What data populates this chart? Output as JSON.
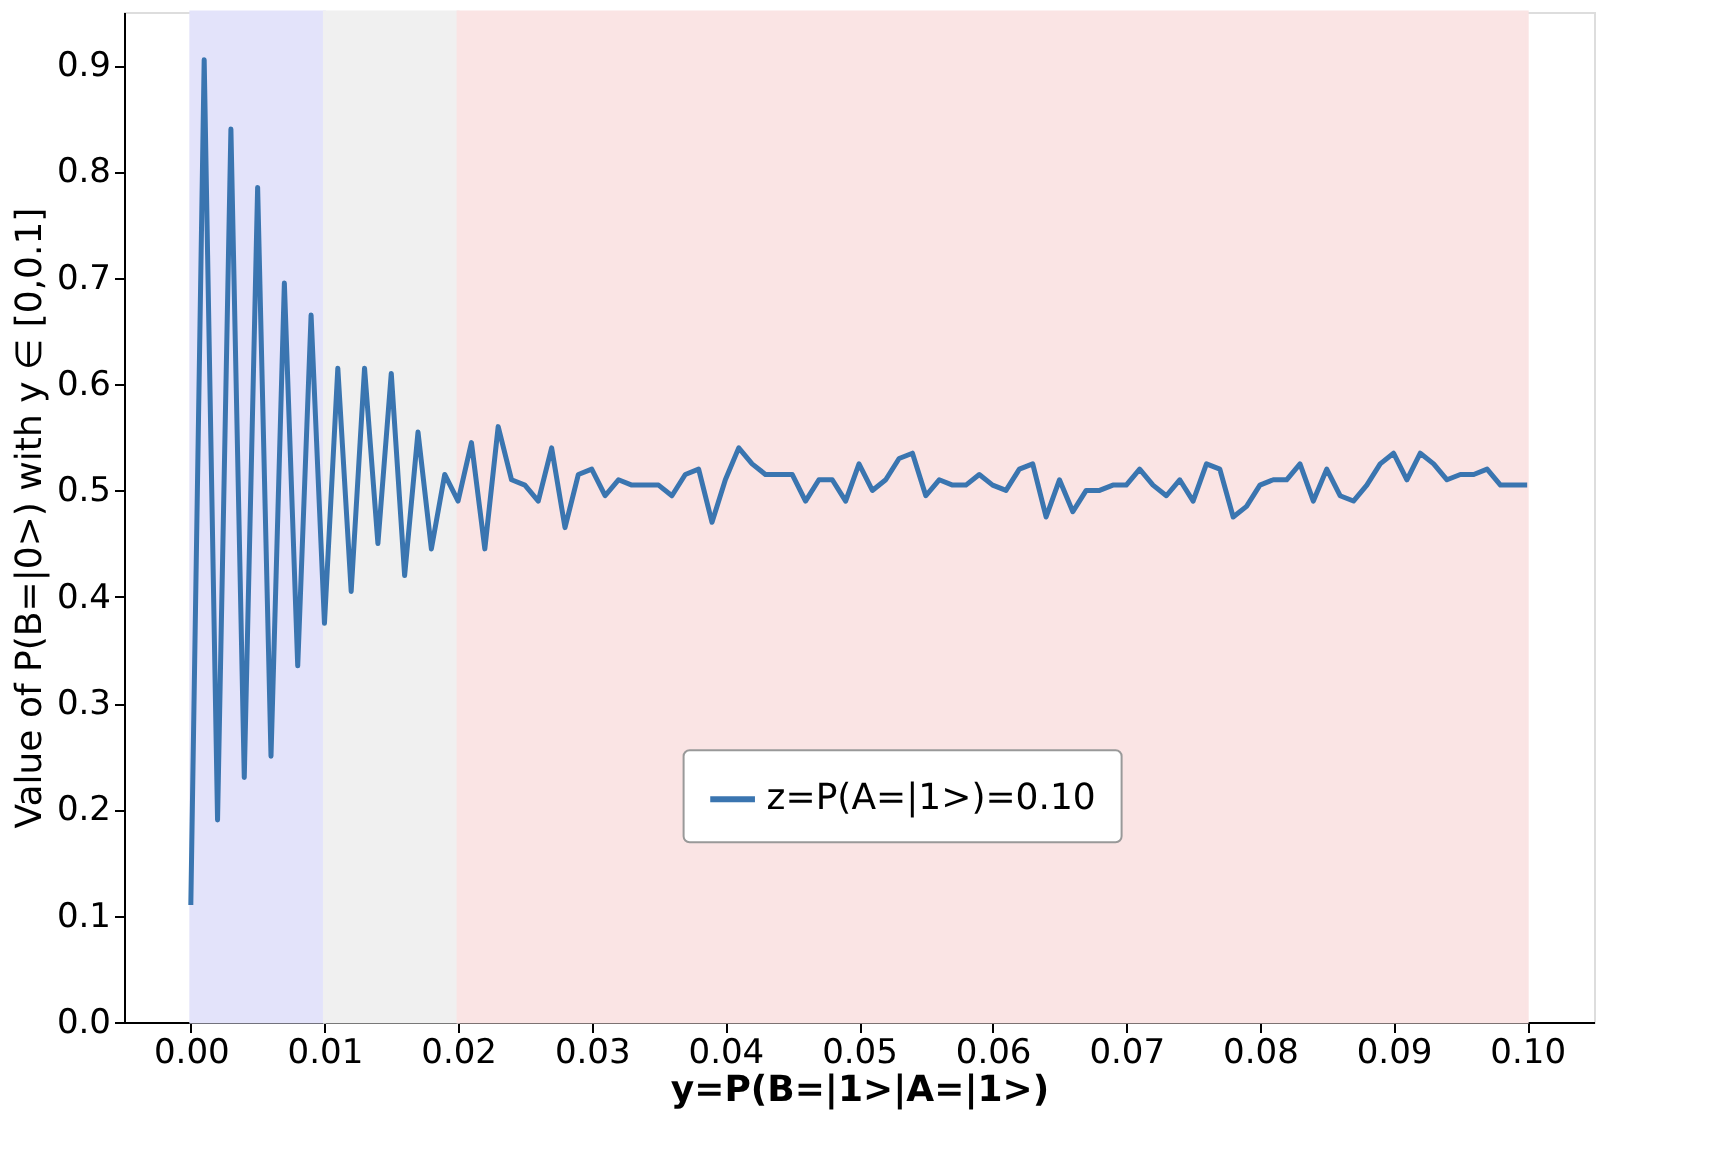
{
  "chart_data": {
    "type": "line",
    "xlabel": "y=P(B=|1>|A=|1>)",
    "ylabel": "Value of P(B=|0>) with y ∈ [0,0.1]",
    "x": [
      0.0,
      0.001,
      0.002,
      0.003,
      0.004,
      0.005,
      0.006,
      0.007,
      0.008,
      0.009,
      0.01,
      0.011,
      0.012,
      0.013,
      0.014,
      0.015,
      0.016,
      0.017,
      0.018,
      0.019,
      0.02,
      0.021,
      0.022,
      0.023,
      0.024,
      0.025,
      0.026,
      0.027,
      0.028,
      0.029,
      0.03,
      0.031,
      0.032,
      0.033,
      0.034,
      0.035,
      0.036,
      0.037,
      0.038,
      0.039,
      0.04,
      0.041,
      0.042,
      0.043,
      0.044,
      0.045,
      0.046,
      0.047,
      0.048,
      0.049,
      0.05,
      0.051,
      0.052,
      0.053,
      0.054,
      0.055,
      0.056,
      0.057,
      0.058,
      0.059,
      0.06,
      0.061,
      0.062,
      0.063,
      0.064,
      0.065,
      0.066,
      0.067,
      0.068,
      0.069,
      0.07,
      0.071,
      0.072,
      0.073,
      0.074,
      0.075,
      0.076,
      0.077,
      0.078,
      0.079,
      0.08,
      0.081,
      0.082,
      0.083,
      0.084,
      0.085,
      0.086,
      0.087,
      0.088,
      0.089,
      0.09,
      0.091,
      0.092,
      0.093,
      0.094,
      0.095,
      0.096,
      0.097,
      0.098,
      0.099,
      0.1
    ],
    "series": [
      {
        "name": "z=P(A=|1>)=0.10",
        "color": "#3a75b0",
        "values": [
          0.11,
          0.905,
          0.19,
          0.84,
          0.23,
          0.785,
          0.25,
          0.695,
          0.335,
          0.665,
          0.375,
          0.615,
          0.405,
          0.615,
          0.45,
          0.61,
          0.42,
          0.555,
          0.445,
          0.515,
          0.49,
          0.545,
          0.445,
          0.56,
          0.51,
          0.505,
          0.49,
          0.54,
          0.465,
          0.515,
          0.52,
          0.495,
          0.51,
          0.505,
          0.505,
          0.505,
          0.495,
          0.515,
          0.52,
          0.47,
          0.51,
          0.54,
          0.525,
          0.515,
          0.515,
          0.515,
          0.49,
          0.51,
          0.51,
          0.49,
          0.525,
          0.5,
          0.51,
          0.53,
          0.535,
          0.495,
          0.51,
          0.505,
          0.505,
          0.515,
          0.505,
          0.5,
          0.52,
          0.525,
          0.475,
          0.51,
          0.48,
          0.5,
          0.5,
          0.505,
          0.505,
          0.52,
          0.505,
          0.495,
          0.51,
          0.49,
          0.525,
          0.52,
          0.475,
          0.485,
          0.505,
          0.51,
          0.51,
          0.525,
          0.49,
          0.52,
          0.495,
          0.49,
          0.505,
          0.525,
          0.535,
          0.51,
          0.535,
          0.525,
          0.51,
          0.515,
          0.515,
          0.52,
          0.505,
          0.505,
          0.505
        ]
      }
    ],
    "xlim": [
      -0.005,
      0.105
    ],
    "ylim": [
      0,
      0.95
    ],
    "xticks": [
      {
        "value": 0,
        "label": "0.00"
      },
      {
        "value": 0.01,
        "label": "0.01"
      },
      {
        "value": 0.02,
        "label": "0.02"
      },
      {
        "value": 0.03,
        "label": "0.03"
      },
      {
        "value": 0.04,
        "label": "0.04"
      },
      {
        "value": 0.05,
        "label": "0.05"
      },
      {
        "value": 0.06,
        "label": "0.06"
      },
      {
        "value": 0.07,
        "label": "0.07"
      },
      {
        "value": 0.08,
        "label": "0.08"
      },
      {
        "value": 0.09,
        "label": "0.09"
      },
      {
        "value": 0.1,
        "label": "0.10"
      }
    ],
    "yticks": [
      {
        "value": 0,
        "label": "0.0"
      },
      0.1,
      0.2,
      0.3,
      0.4,
      0.5,
      0.6,
      0.7,
      0.8,
      0.9
    ],
    "bands": [
      {
        "axis": "x",
        "from": 0,
        "to": 0.01,
        "color": "#e3e3fa"
      },
      {
        "axis": "x",
        "from": 0.01,
        "to": 0.02,
        "color": "#f0f0f0"
      },
      {
        "axis": "x",
        "from": 0.02,
        "to": 0.1,
        "color": "#fae4e4"
      }
    ],
    "grid": false,
    "legend": "bottom",
    "line_style": "solid",
    "marker": "none"
  }
}
